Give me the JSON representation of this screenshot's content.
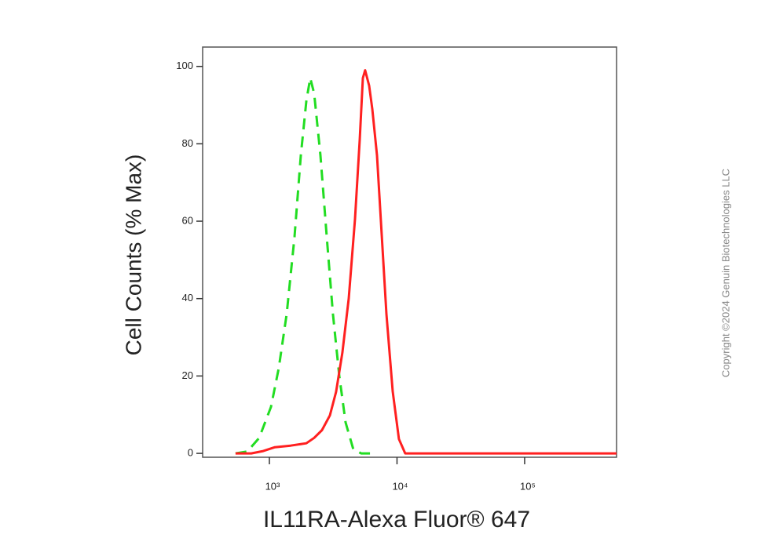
{
  "chart_data": {
    "type": "line",
    "xlabel": "IL11RA-Alexa Fluor® 647",
    "ylabel": "Cell Counts (% Max)",
    "annotation": "Copyright ©2024 Genuin Biotechnologies LLC",
    "xscale": "log",
    "xlim": [
      300,
      525000
    ],
    "ylim": [
      -1,
      105
    ],
    "xticks": [
      {
        "value": 1000,
        "label": "10³"
      },
      {
        "value": 10000,
        "label": "10⁴"
      },
      {
        "value": 100000,
        "label": "10⁵"
      }
    ],
    "yticks": [
      0,
      20,
      40,
      60,
      80,
      100
    ],
    "grid": false,
    "series": [
      {
        "color": "#22dd22",
        "dash": true,
        "x": [
          543,
          673,
          832,
          1029,
          1185,
          1366,
          1574,
          1763,
          1946,
          2090,
          2244,
          2513,
          2814,
          3150,
          3530,
          3955,
          4550,
          5250,
          6970
        ],
        "values": [
          0,
          0.5,
          4,
          12,
          22,
          36,
          56,
          77,
          91,
          97,
          93,
          77,
          56,
          36,
          20,
          8,
          1,
          0,
          0
        ]
      },
      {
        "color": "#ff2020",
        "dash": false,
        "x": [
          543,
          721,
          894,
          1104,
          1466,
          1946,
          2244,
          2583,
          2977,
          3333,
          3733,
          4185,
          4690,
          5105,
          5400,
          5630,
          6050,
          6400,
          6970,
          7590,
          8260,
          9250,
          10350,
          11600,
          14150,
          38200,
          525000
        ],
        "values": [
          0,
          0,
          0.6,
          1.6,
          2,
          2.6,
          4,
          6,
          9.8,
          15.9,
          26,
          40,
          60.6,
          81,
          97,
          99,
          95,
          89,
          77,
          56.5,
          36,
          16,
          3.7,
          0,
          0,
          0,
          0
        ]
      }
    ]
  }
}
